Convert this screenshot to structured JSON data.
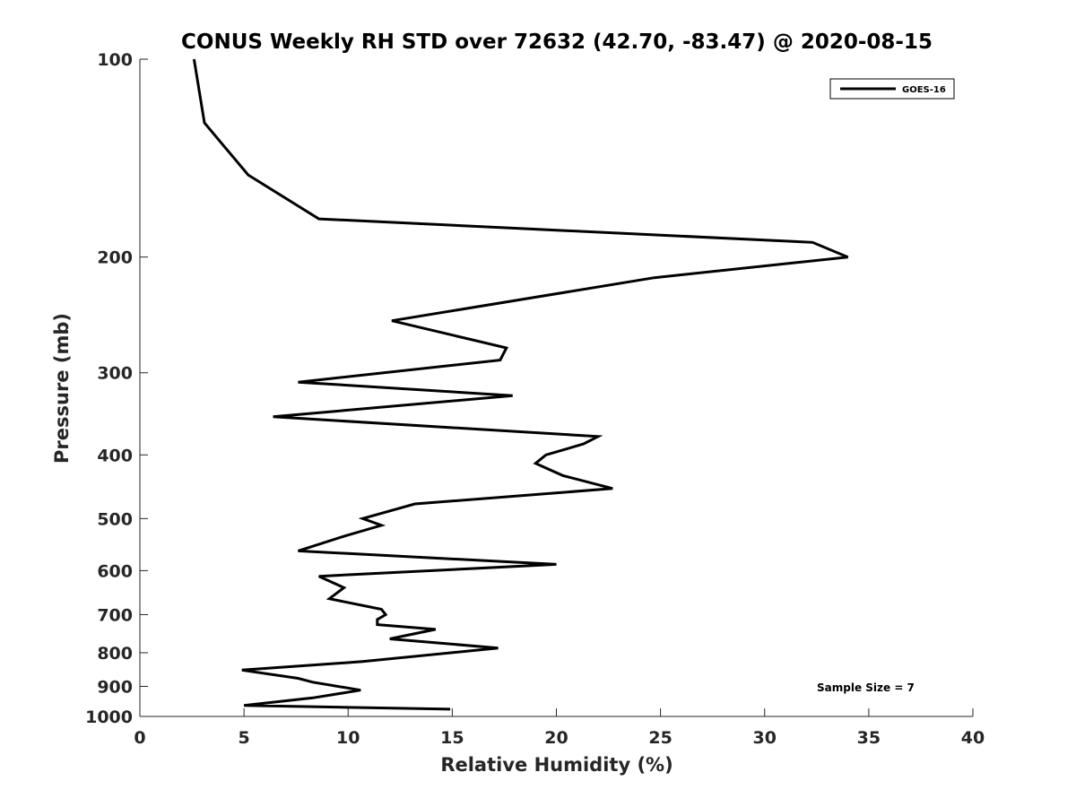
{
  "chart_data": {
    "type": "line",
    "title": "CONUS Weekly RH STD over 72632 (42.70, -83.47) @ 2020-08-15",
    "xlabel": "Relative Humidity (%)",
    "ylabel": "Pressure (mb)",
    "xlim": [
      0,
      40
    ],
    "ylim": [
      100,
      1000
    ],
    "y_scale": "log",
    "y_reversed": true,
    "grid": false,
    "legend_position": "top-right",
    "x_ticks": [
      "0",
      "5",
      "10",
      "15",
      "20",
      "25",
      "30",
      "35",
      "40"
    ],
    "y_ticks": [
      "100",
      "200",
      "300",
      "400",
      "500",
      "600",
      "700",
      "800",
      "900",
      "1000"
    ],
    "series": [
      {
        "name": "GOES-16",
        "color": "#000000",
        "points": [
          [
            2.6,
            100
          ],
          [
            3.1,
            125
          ],
          [
            5.2,
            150
          ],
          [
            8.6,
            175
          ],
          [
            32.3,
            190
          ],
          [
            34.0,
            200
          ],
          [
            24.7,
            215
          ],
          [
            12.1,
            250
          ],
          [
            17.6,
            275
          ],
          [
            17.3,
            287
          ],
          [
            7.6,
            310
          ],
          [
            17.9,
            325
          ],
          [
            6.4,
            350
          ],
          [
            22.0,
            375
          ],
          [
            21.3,
            385
          ],
          [
            19.5,
            400
          ],
          [
            19.0,
            412
          ],
          [
            20.3,
            430
          ],
          [
            22.7,
            450
          ],
          [
            13.2,
            475
          ],
          [
            10.7,
            500
          ],
          [
            11.6,
            512
          ],
          [
            9.8,
            532
          ],
          [
            7.6,
            560
          ],
          [
            20.0,
            587
          ],
          [
            8.6,
            612
          ],
          [
            9.8,
            637
          ],
          [
            9.1,
            662
          ],
          [
            11.6,
            687
          ],
          [
            11.8,
            700
          ],
          [
            11.4,
            712
          ],
          [
            11.4,
            725
          ],
          [
            14.2,
            737
          ],
          [
            12.0,
            762
          ],
          [
            17.2,
            787
          ],
          [
            10.7,
            825
          ],
          [
            4.9,
            850
          ],
          [
            7.6,
            875
          ],
          [
            8.3,
            887
          ],
          [
            10.6,
            912
          ],
          [
            8.3,
            937
          ],
          [
            5.0,
            962
          ],
          [
            14.9,
            975
          ]
        ]
      }
    ],
    "annotation": "Sample Size = 7"
  }
}
